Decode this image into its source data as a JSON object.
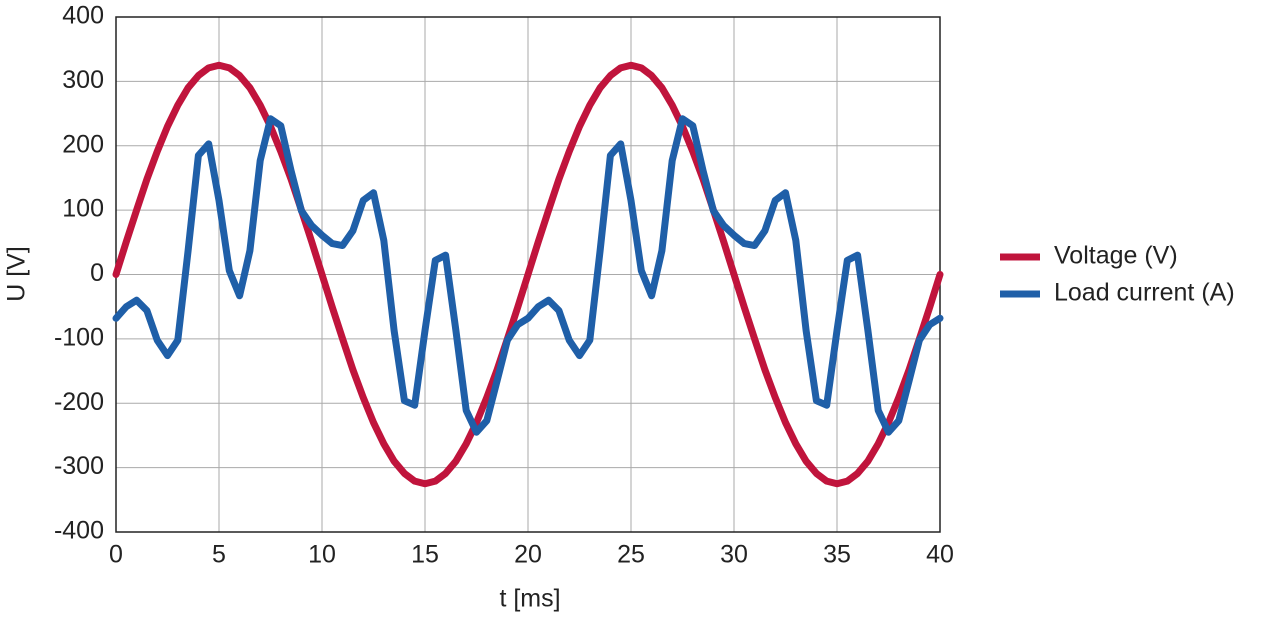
{
  "chart_data": {
    "type": "line",
    "x_label": "t [ms]",
    "y_label": "U [V]",
    "x": [
      0,
      0.5,
      1,
      1.5,
      2,
      2.5,
      3,
      3.5,
      4,
      4.5,
      5,
      5.5,
      6,
      6.5,
      7,
      7.5,
      8,
      8.5,
      9,
      9.5,
      10,
      10.5,
      11,
      11.5,
      12,
      12.5,
      13,
      13.5,
      14,
      14.5,
      15,
      15.5,
      16,
      16.5,
      17,
      17.5,
      18,
      18.5,
      19,
      19.5,
      20,
      20.5,
      21,
      21.5,
      22,
      22.5,
      23,
      23.5,
      24,
      24.5,
      25,
      25.5,
      26,
      26.5,
      27,
      27.5,
      28,
      28.5,
      29,
      29.5,
      30,
      30.5,
      31,
      31.5,
      32,
      32.5,
      33,
      33.5,
      34,
      34.5,
      35,
      35.5,
      36,
      36.5,
      37,
      37.5,
      38,
      38.5,
      39,
      39.5,
      40
    ],
    "series": [
      {
        "name": "Voltage (V)",
        "color": "#c0143c",
        "values": [
          0,
          51,
          100,
          148,
          191,
          230,
          263,
          290,
          309,
          321,
          325,
          321,
          309,
          290,
          263,
          230,
          191,
          148,
          100,
          51,
          0,
          -51,
          -100,
          -148,
          -191,
          -230,
          -263,
          -290,
          -309,
          -321,
          -325,
          -321,
          -309,
          -290,
          -263,
          -230,
          -191,
          -148,
          -100,
          -51,
          0,
          51,
          100,
          148,
          191,
          230,
          263,
          290,
          309,
          321,
          325,
          321,
          309,
          290,
          263,
          230,
          191,
          148,
          100,
          51,
          0,
          -51,
          -100,
          -148,
          -191,
          -230,
          -263,
          -290,
          -309,
          -321,
          -325,
          -321,
          -309,
          -290,
          -263,
          -230,
          -191,
          -148,
          -100,
          -51,
          0
        ]
      },
      {
        "name": "Load current (A)",
        "color": "#1f5fa8",
        "values": [
          -68,
          -50,
          -40,
          -56,
          -102,
          -126,
          -102,
          37,
          185,
          203,
          115,
          6,
          -33,
          37,
          177,
          242,
          231,
          161,
          99,
          76,
          61,
          48,
          45,
          68,
          115,
          127,
          53,
          -87,
          -196,
          -203,
          -87,
          22,
          30,
          -87,
          -211,
          -245,
          -227,
          -165,
          -102,
          -78,
          -68,
          -50,
          -40,
          -56,
          -102,
          -126,
          -102,
          37,
          185,
          203,
          115,
          6,
          -33,
          37,
          177,
          242,
          231,
          161,
          99,
          76,
          61,
          48,
          45,
          68,
          115,
          127,
          53,
          -87,
          -196,
          -203,
          -87,
          22,
          30,
          -87,
          -211,
          -245,
          -227,
          -165,
          -102,
          -78,
          -68
        ]
      }
    ],
    "xlim": [
      0,
      40
    ],
    "xticks": [
      0,
      5,
      10,
      15,
      20,
      25,
      30,
      35,
      40
    ],
    "ylim": [
      -400,
      400
    ],
    "yticks": [
      -400,
      -300,
      -200,
      -100,
      0,
      100,
      200,
      300,
      400
    ],
    "grid": true,
    "legend": "right"
  }
}
